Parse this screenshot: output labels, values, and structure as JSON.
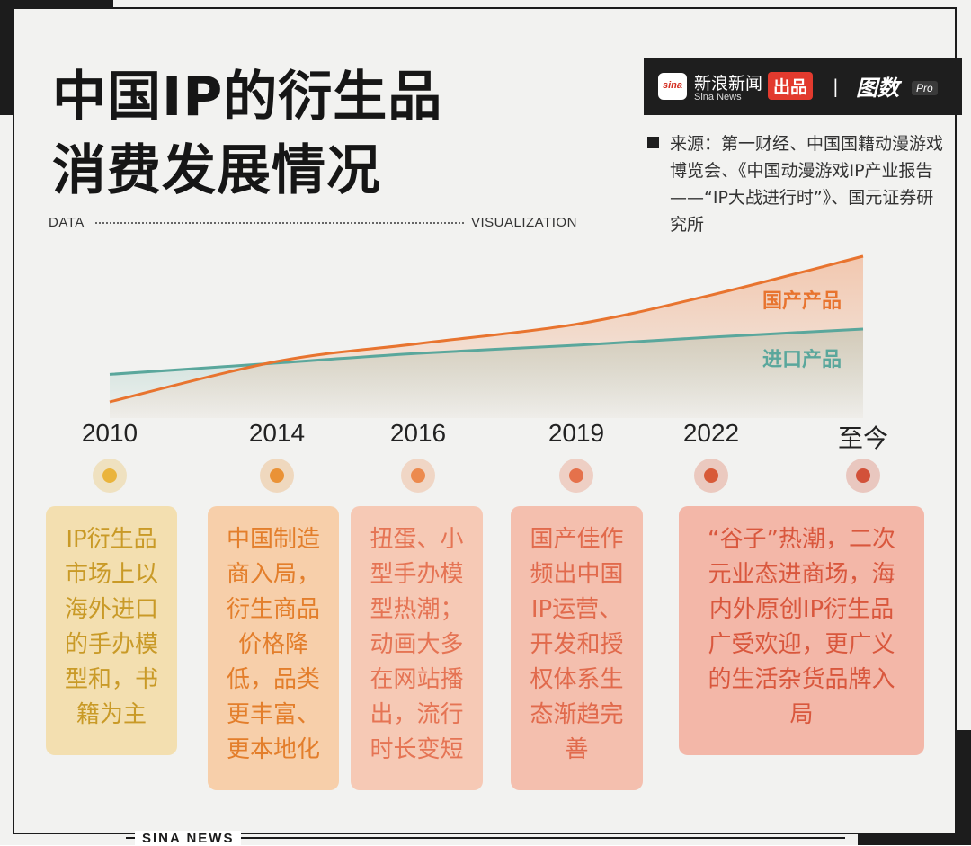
{
  "title_lines": [
    "中国IP的衍生品",
    "消费发展情况"
  ],
  "data_label": "DATA",
  "visualization_label": "VISUALIZATION",
  "brand": {
    "sina_mark": "sina",
    "name_cn": "新浪新闻",
    "name_en": "Sina News",
    "badge": "出品",
    "separator": "|",
    "tushu": "图数",
    "pro": "Pro"
  },
  "source_text": "来源：第一财经、中国国籍动漫游戏博览会、《中国动漫游戏IP产业报告——“IP大战进行时”》、国元证券研究所",
  "footer": "SINA NEWS",
  "colors": {
    "domestic": "#e8742f",
    "imported": "#5aa79c",
    "timeline": "#f0b98e"
  },
  "chart_data": {
    "type": "line",
    "title": "中国IP的衍生品消费发展情况",
    "categories": [
      "2010",
      "2014",
      "2016",
      "2019",
      "2022",
      "至今"
    ],
    "series": [
      {
        "name": "国产产品",
        "values": [
          10,
          35,
          46,
          58,
          76,
          100
        ]
      },
      {
        "name": "进口产品",
        "values": [
          27,
          34,
          40,
          45,
          50,
          55
        ]
      }
    ],
    "ylim": [
      0,
      100
    ],
    "grid": false,
    "legend": "inline-right"
  },
  "timeline": [
    {
      "year": "2010",
      "lines": [
        "IP衍生品",
        "市场上以",
        "海外进口",
        "的手办模",
        "型和，书",
        "籍为主"
      ]
    },
    {
      "year": "2014",
      "lines": [
        "中国制造",
        "商入局，",
        "衍生商品",
        "价格降",
        "低，品类",
        "更丰富、",
        "更本地化"
      ]
    },
    {
      "year": "2016",
      "lines": [
        "扭蛋、小",
        "型手办模",
        "型热潮；",
        "动画大多",
        "在网站播",
        "出，流行",
        "时长变短"
      ]
    },
    {
      "year": "2019",
      "lines": [
        "国产佳作",
        "频出中国",
        "IP运营、",
        "开发和授",
        "权体系生",
        "态渐趋完",
        "善"
      ]
    },
    {
      "year": "2022",
      "lines": [
        "“谷子”热潮，二次",
        "元业态进商场，海",
        "内外原创IP衍生品",
        "广受欢迎，更广义",
        "的生活杂货品牌入",
        "局"
      ]
    },
    {
      "year": "至今",
      "lines": []
    }
  ]
}
